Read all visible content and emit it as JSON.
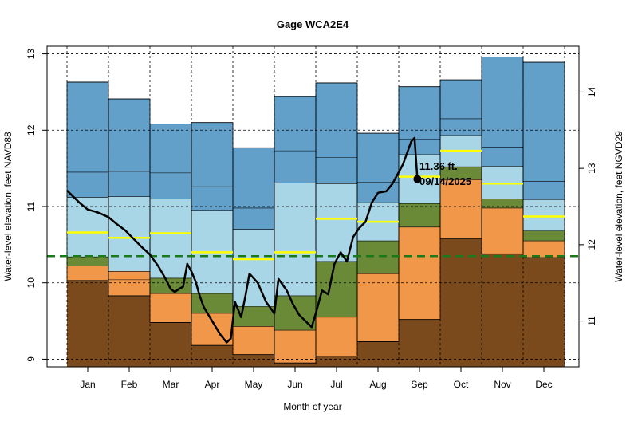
{
  "chart_data": {
    "type": "area",
    "title": "Gage WCA2E4",
    "xlabel": "Month of year",
    "ylabel_left": "Water-level elevation, feet NAVD88",
    "ylabel_right": "Water-level elevation, feet NGVD29",
    "months": [
      "Jan",
      "Feb",
      "Mar",
      "Apr",
      "May",
      "Jun",
      "Jul",
      "Aug",
      "Sep",
      "Oct",
      "Nov",
      "Dec"
    ],
    "ylim_left": [
      8.9,
      13.1
    ],
    "yticks_left": [
      9,
      10,
      11,
      12,
      13
    ],
    "right_axis_offset": 1.5,
    "yticks_right": [
      11,
      12,
      13,
      14
    ],
    "grid": true,
    "reference_line": {
      "value": 10.35,
      "color": "#1a7a1a",
      "style": "dashed"
    },
    "bands": [
      {
        "name": "minimum",
        "color": "#7a4a1c",
        "values": [
          10.03,
          9.83,
          9.48,
          9.18,
          9.06,
          8.95,
          9.04,
          9.23,
          9.52,
          10.58,
          10.38,
          10.33
        ]
      },
      {
        "name": "p10",
        "color": "#f0974a",
        "values": [
          10.22,
          10.15,
          9.86,
          9.6,
          9.43,
          9.38,
          9.55,
          10.12,
          10.73,
          11.35,
          10.98,
          10.55
        ]
      },
      {
        "name": "p25",
        "color": "#6a8a38",
        "values": [
          10.34,
          10.04,
          10.06,
          9.86,
          9.69,
          9.83,
          10.28,
          10.55,
          11.04,
          11.52,
          11.1,
          10.68
        ]
      },
      {
        "name": "p75",
        "color": "#a9d6e6",
        "values": [
          11.12,
          11.13,
          11.1,
          10.95,
          10.7,
          11.31,
          11.3,
          11.05,
          11.68,
          11.93,
          11.53,
          11.09
        ]
      },
      {
        "name": "p90",
        "color": "#62a0c9",
        "values": [
          11.45,
          11.46,
          11.44,
          11.26,
          10.98,
          11.73,
          11.64,
          11.32,
          11.88,
          12.15,
          11.78,
          11.33
        ]
      },
      {
        "name": "maximum",
        "color": "#62a0c9",
        "values": [
          12.63,
          12.41,
          12.08,
          12.1,
          11.77,
          12.44,
          12.62,
          11.96,
          12.57,
          12.66,
          12.96,
          12.89
        ]
      }
    ],
    "median": {
      "color": "#ffff00",
      "values": [
        10.66,
        10.59,
        10.65,
        10.4,
        10.31,
        10.4,
        10.84,
        10.8,
        11.39,
        11.73,
        11.3,
        10.87
      ]
    },
    "current_series": {
      "color": "#000000",
      "points": [
        [
          1.0,
          11.21
        ],
        [
          1.3,
          11.05
        ],
        [
          1.5,
          10.96
        ],
        [
          1.7,
          10.93
        ],
        [
          1.8,
          10.91
        ],
        [
          2.0,
          10.86
        ],
        [
          2.2,
          10.77
        ],
        [
          2.4,
          10.69
        ],
        [
          2.6,
          10.58
        ],
        [
          2.8,
          10.47
        ],
        [
          3.0,
          10.37
        ],
        [
          3.2,
          10.22
        ],
        [
          3.35,
          10.08
        ],
        [
          3.5,
          9.92
        ],
        [
          3.6,
          9.88
        ],
        [
          3.7,
          9.92
        ],
        [
          3.8,
          9.95
        ],
        [
          3.9,
          10.25
        ],
        [
          4.0,
          10.15
        ],
        [
          4.1,
          10.02
        ],
        [
          4.2,
          9.83
        ],
        [
          4.3,
          9.68
        ],
        [
          4.5,
          9.5
        ],
        [
          4.7,
          9.32
        ],
        [
          4.85,
          9.22
        ],
        [
          4.95,
          9.27
        ],
        [
          5.05,
          9.75
        ],
        [
          5.2,
          9.55
        ],
        [
          5.3,
          9.82
        ],
        [
          5.4,
          10.12
        ],
        [
          5.6,
          10.0
        ],
        [
          5.8,
          9.75
        ],
        [
          6.0,
          9.6
        ],
        [
          6.1,
          10.05
        ],
        [
          6.3,
          9.9
        ],
        [
          6.45,
          9.72
        ],
        [
          6.6,
          9.58
        ],
        [
          6.75,
          9.5
        ],
        [
          6.9,
          9.42
        ],
        [
          7.0,
          9.6
        ],
        [
          7.15,
          9.9
        ],
        [
          7.3,
          9.85
        ],
        [
          7.45,
          10.25
        ],
        [
          7.6,
          10.4
        ],
        [
          7.75,
          10.28
        ],
        [
          7.9,
          10.6
        ],
        [
          8.05,
          10.72
        ],
        [
          8.2,
          10.8
        ],
        [
          8.35,
          11.05
        ],
        [
          8.5,
          11.18
        ],
        [
          8.7,
          11.2
        ],
        [
          8.85,
          11.3
        ],
        [
          9.0,
          11.45
        ],
        [
          9.1,
          11.55
        ],
        [
          9.2,
          11.7
        ],
        [
          9.3,
          11.85
        ],
        [
          9.38,
          11.9
        ],
        [
          9.45,
          11.36
        ]
      ]
    },
    "current_point": {
      "x": 9.45,
      "y": 11.36,
      "label_value": "11.36 ft.",
      "label_date": "09/14/2025"
    }
  }
}
